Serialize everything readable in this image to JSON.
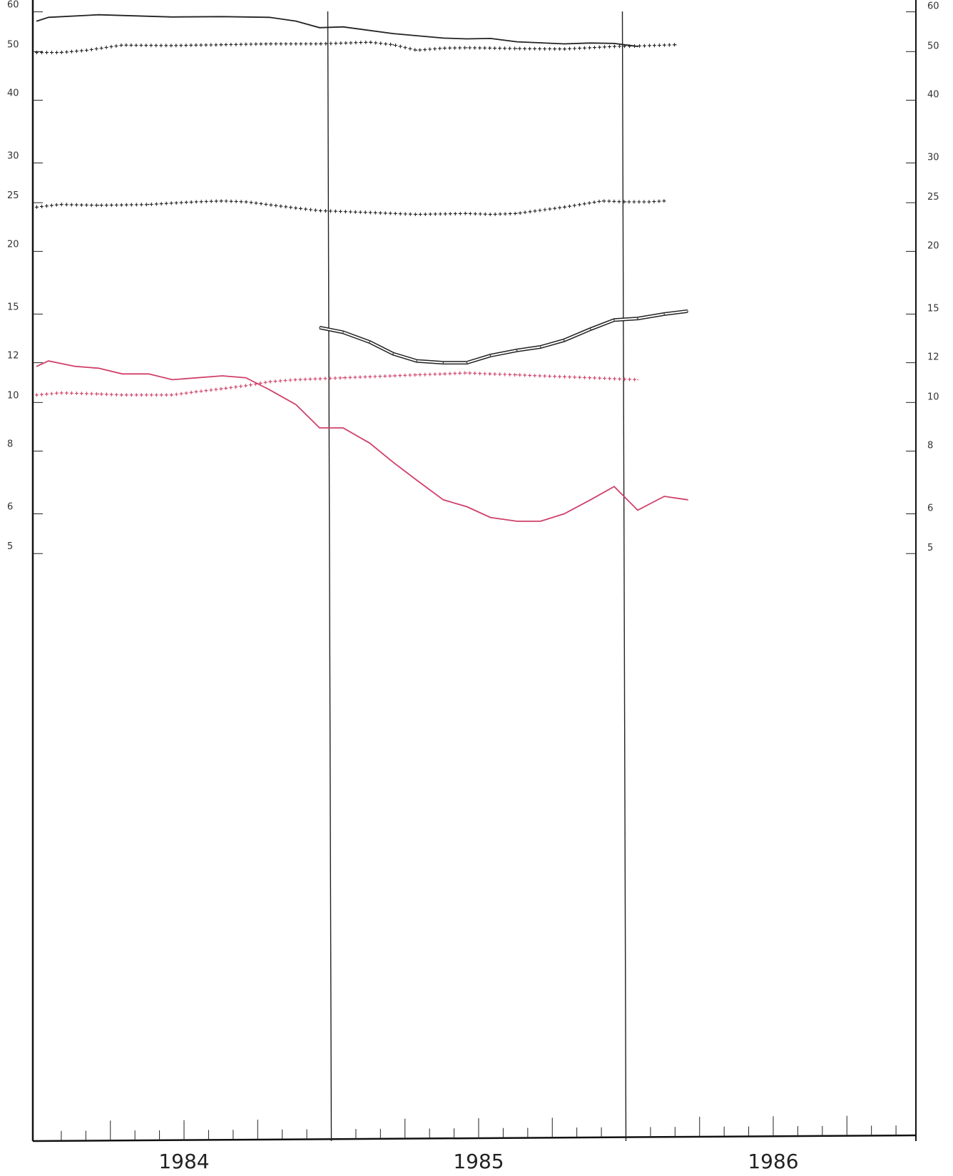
{
  "chart_data": {
    "type": "line",
    "title": "",
    "xlabel": "",
    "ylabel": "",
    "y_scale": "log",
    "ylim": [
      5,
      60
    ],
    "left_y_ticks": [
      60,
      50,
      40,
      30,
      25,
      20,
      15,
      12,
      10,
      8,
      6,
      5
    ],
    "right_y_ticks": [
      60,
      50,
      40,
      30,
      25,
      20,
      15,
      12,
      10,
      8,
      6,
      5
    ],
    "x_tick_labels": [
      "1984",
      "1985",
      "1986"
    ],
    "xlim": [
      1983.5,
      1986.5
    ],
    "vertical_reference_lines": [
      1984.5,
      1985.5
    ],
    "grid": false,
    "legend": "none",
    "series": [
      {
        "style": "solid",
        "color": "#222222",
        "x": [
          1983.5,
          1983.54,
          1983.71,
          1983.96,
          1984.13,
          1984.29,
          1984.38,
          1984.46,
          1984.54,
          1984.71,
          1984.88,
          1984.96,
          1985.04,
          1985.13,
          1985.29,
          1985.38,
          1985.46,
          1985.54
        ],
        "y": [
          57.5,
          58.5,
          59.2,
          58.6,
          58.7,
          58.5,
          57.5,
          55.8,
          56.0,
          54.3,
          53.2,
          53.0,
          53.1,
          52.3,
          51.8,
          52.0,
          51.9,
          51.2
        ]
      },
      {
        "style": "plus",
        "color": "#222222",
        "x": [
          1983.5,
          1983.58,
          1983.67,
          1983.79,
          1983.96,
          1984.13,
          1984.29,
          1984.46,
          1984.63,
          1984.71,
          1984.79,
          1984.88,
          1984.96,
          1985.13,
          1985.29,
          1985.38,
          1985.46,
          1985.54,
          1985.67
        ],
        "y": [
          49.8,
          49.8,
          50.3,
          51.5,
          51.4,
          51.6,
          51.8,
          51.8,
          52.2,
          51.6,
          50.3,
          50.8,
          50.9,
          50.7,
          50.6,
          50.9,
          51.2,
          51.3,
          51.6
        ]
      },
      {
        "style": "plus",
        "color": "#222222",
        "x": [
          1983.5,
          1983.58,
          1983.71,
          1983.88,
          1984.04,
          1984.13,
          1984.21,
          1984.38,
          1984.46,
          1984.63,
          1984.79,
          1984.96,
          1985.04,
          1985.13,
          1985.29,
          1985.42,
          1985.5,
          1985.58,
          1985.63
        ],
        "y": [
          24.5,
          24.8,
          24.7,
          24.8,
          25.1,
          25.2,
          25.1,
          24.4,
          24.1,
          23.9,
          23.7,
          23.8,
          23.7,
          23.8,
          24.5,
          25.2,
          25.1,
          25.1,
          25.2
        ]
      },
      {
        "style": "double",
        "color": "#222222",
        "x": [
          1984.46,
          1984.54,
          1984.63,
          1984.71,
          1984.79,
          1984.88,
          1984.96,
          1985.04,
          1985.13,
          1985.21,
          1985.29,
          1985.38,
          1985.46,
          1985.54,
          1985.63,
          1985.71
        ],
        "y": [
          14.1,
          13.8,
          13.2,
          12.5,
          12.1,
          12.0,
          12.0,
          12.4,
          12.7,
          12.9,
          13.3,
          14.0,
          14.6,
          14.7,
          15.0,
          15.2
        ]
      },
      {
        "style": "solid",
        "color": "#d0406a",
        "x": [
          1983.5,
          1983.54,
          1983.63,
          1983.71,
          1983.79,
          1983.88,
          1983.96,
          1984.13,
          1984.21,
          1984.29,
          1984.38,
          1984.46,
          1984.54,
          1984.63,
          1984.71,
          1984.79,
          1984.88,
          1984.96,
          1985.04,
          1985.13,
          1985.21,
          1985.29,
          1985.38,
          1985.46,
          1985.54,
          1985.63,
          1985.71
        ],
        "y": [
          11.8,
          12.1,
          11.8,
          11.7,
          11.4,
          11.4,
          11.1,
          11.3,
          11.2,
          10.6,
          9.9,
          8.9,
          8.9,
          8.3,
          7.6,
          7.0,
          6.4,
          6.2,
          5.9,
          5.8,
          5.8,
          6.0,
          6.4,
          6.8,
          6.1,
          6.5,
          6.4
        ]
      },
      {
        "style": "plus",
        "color": "#d0406a",
        "x": [
          1983.5,
          1983.58,
          1983.71,
          1983.79,
          1983.96,
          1984.04,
          1984.13,
          1984.21,
          1984.29,
          1984.38,
          1984.46,
          1984.54,
          1984.63,
          1984.71,
          1984.79,
          1984.88,
          1984.96,
          1985.04,
          1985.13,
          1985.21,
          1985.29,
          1985.38,
          1985.46,
          1985.54
        ],
        "y": [
          10.35,
          10.45,
          10.4,
          10.35,
          10.35,
          10.5,
          10.65,
          10.8,
          11.0,
          11.1,
          11.15,
          11.2,
          11.25,
          11.3,
          11.35,
          11.4,
          11.45,
          11.4,
          11.35,
          11.3,
          11.25,
          11.2,
          11.15,
          11.1
        ]
      }
    ]
  }
}
